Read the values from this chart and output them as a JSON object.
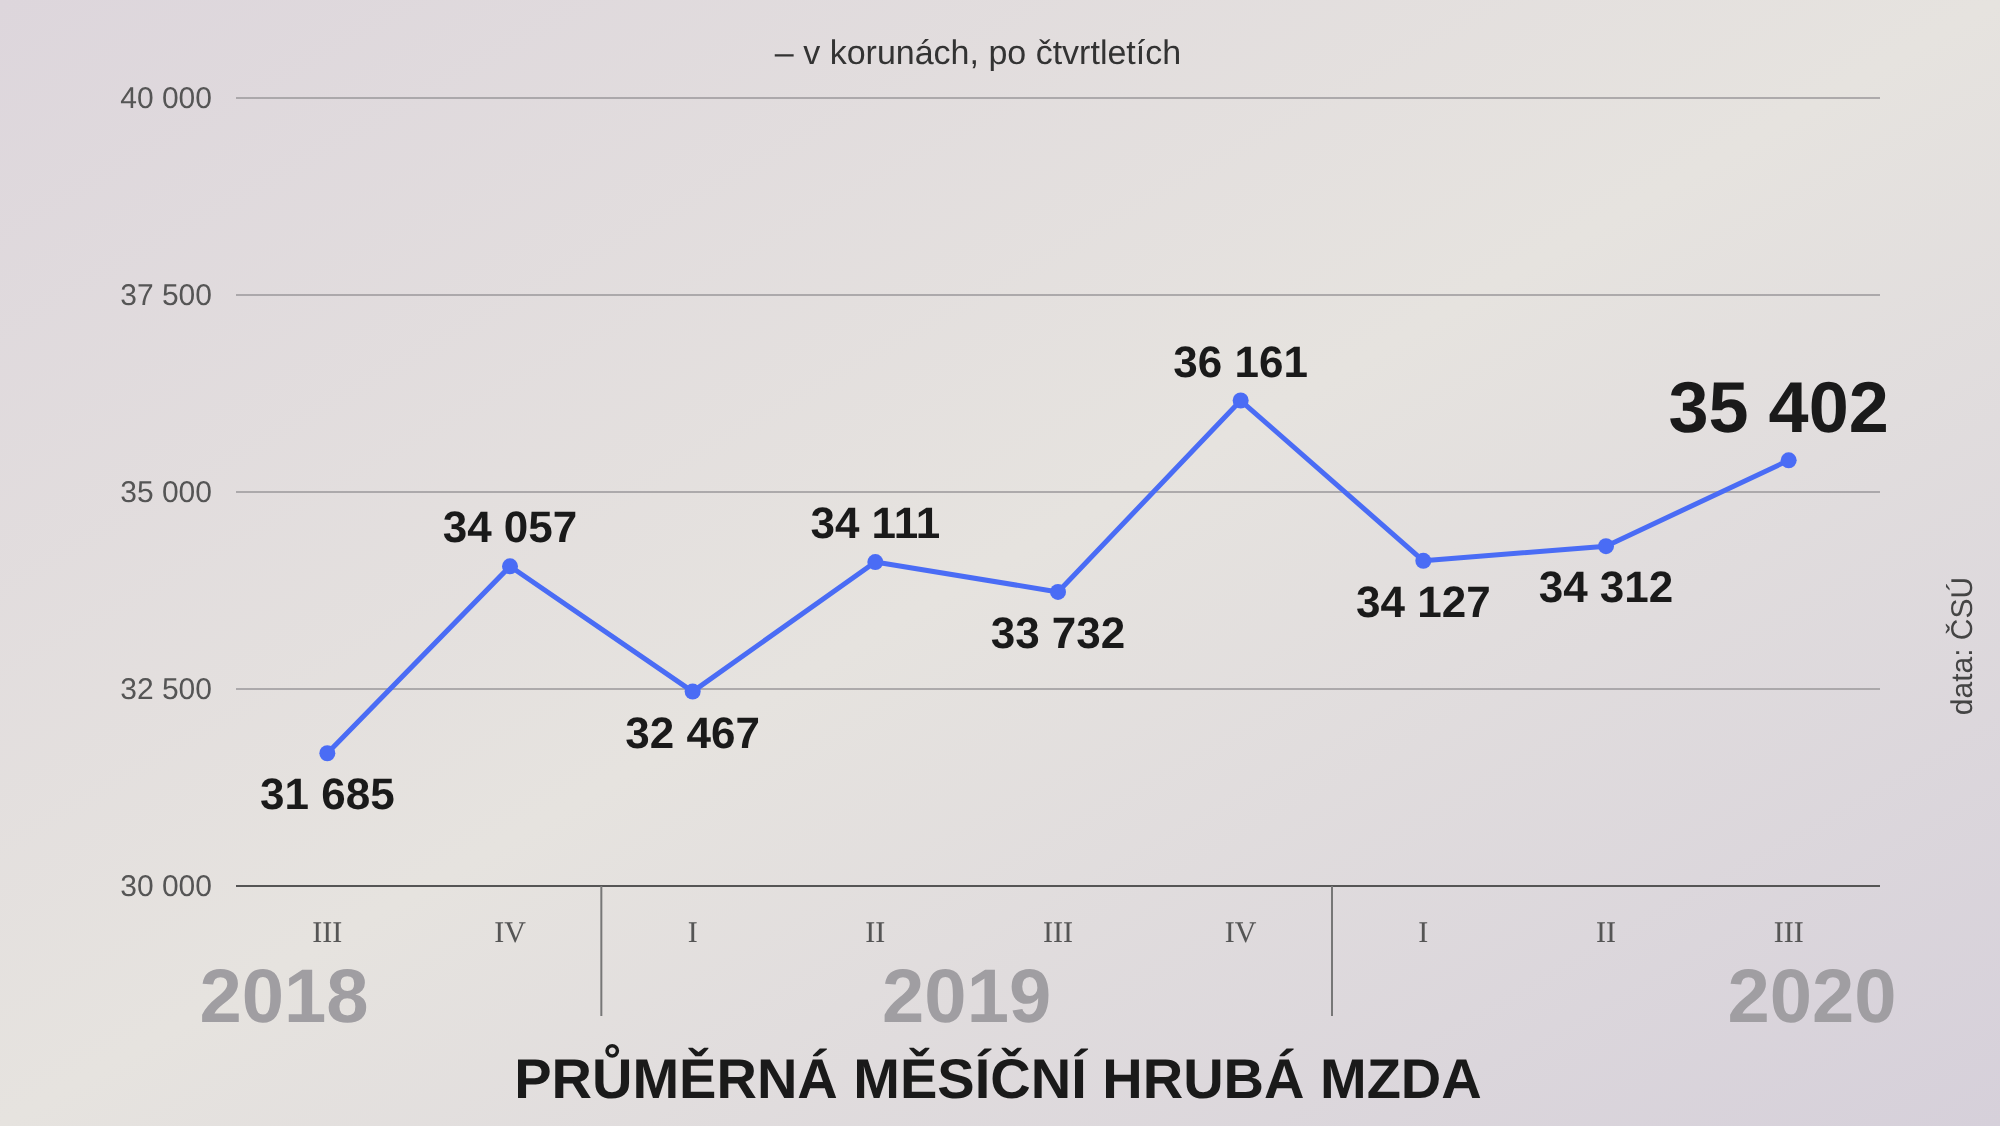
{
  "chart_data": {
    "type": "line",
    "title": "PRŮMĚRNÁ MĚSÍČNÍ HRUBÁ MZDA",
    "subtitle": "– v korunách, po čtvrtletích",
    "categories": [
      "III",
      "IV",
      "I",
      "II",
      "III",
      "IV",
      "I",
      "II",
      "III"
    ],
    "series": [
      {
        "color": "#4a6cf5",
        "values": [
          31685,
          34057,
          32467,
          34111,
          33732,
          36161,
          34127,
          34312,
          35402
        ],
        "value_labels": [
          "31 685",
          "34 057",
          "32 467",
          "34 111",
          "33 732",
          "36 161",
          "34 127",
          "34 312",
          "35 402"
        ]
      }
    ],
    "ylim": [
      30000,
      40000
    ],
    "yticks": [
      {
        "value": 30000,
        "label": "30 000"
      },
      {
        "value": 32500,
        "label": "32 500"
      },
      {
        "value": 35000,
        "label": "35 000"
      },
      {
        "value": 37500,
        "label": "37 500"
      },
      {
        "value": 40000,
        "label": "40 000"
      }
    ],
    "grid": "y",
    "marker": "circle",
    "annotations": [
      "2018",
      "2019",
      "2020",
      "data: ČSÚ"
    ]
  }
}
